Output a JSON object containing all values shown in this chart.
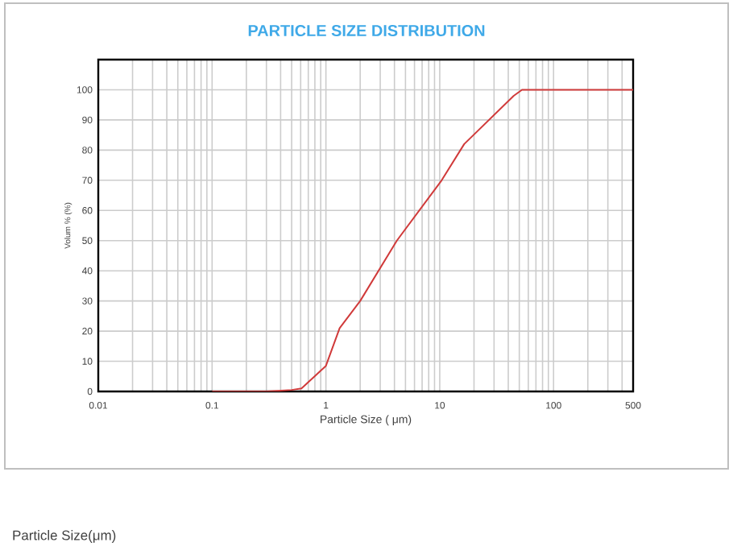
{
  "chart_data": {
    "type": "line",
    "title": "PARTICLE SIZE DISTRIBUTION",
    "xlabel": "Particle Size ( μm)",
    "ylabel": "Volum % (%)",
    "annotations": [
      "Particle Size(μm)"
    ],
    "log": "x",
    "grid": true,
    "xlim": [
      0.01,
      500
    ],
    "xticks": [
      0.01,
      0.1,
      1,
      10,
      100,
      500
    ],
    "ylim": [
      0,
      110
    ],
    "yticks": [
      0,
      10,
      20,
      30,
      40,
      50,
      60,
      70,
      80,
      90,
      100
    ],
    "series": [
      {
        "color": "#d03a3a",
        "x": [
          0.1,
          0.3,
          0.5,
          0.61,
          1,
          1.32,
          2,
          4.2,
          10.4,
          16.4,
          44.6,
          52.8,
          500
        ],
        "values": [
          0,
          0,
          0.5,
          1,
          8.5,
          21,
          30,
          50,
          70,
          82,
          98,
          100,
          100
        ]
      }
    ]
  }
}
